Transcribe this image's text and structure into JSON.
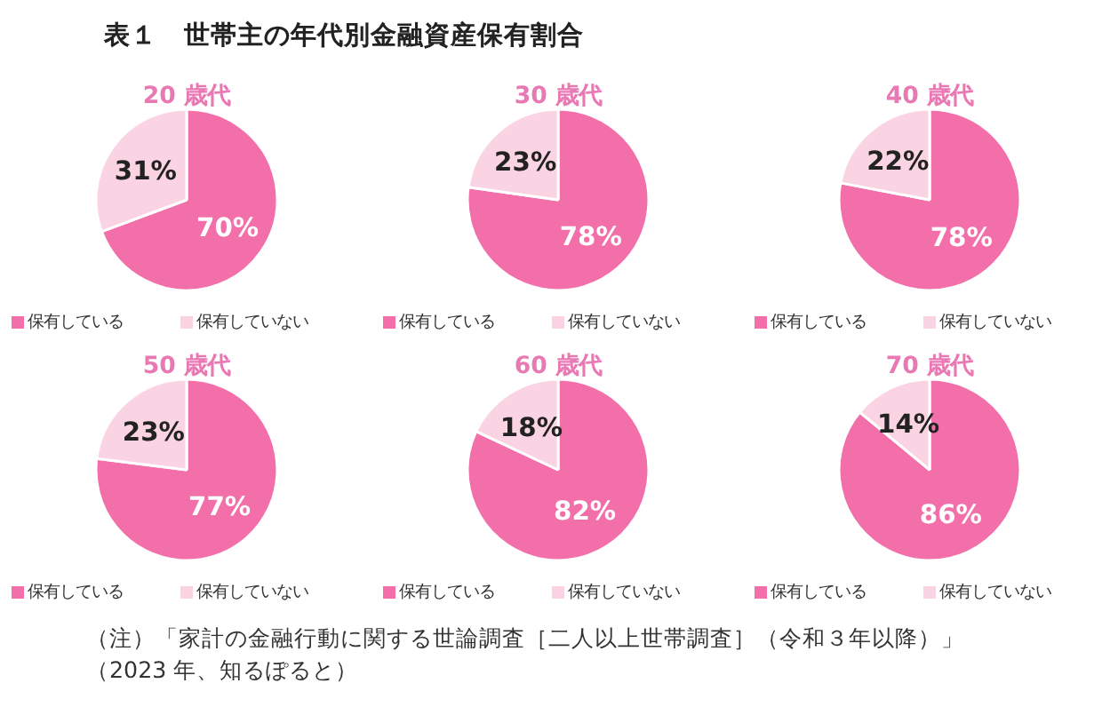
{
  "chart_data": [
    {
      "type": "other",
      "title": "表１　世帯主の年代別金融資産保有割合",
      "annotations": [
        "（注）「家計の金融行動に関する世論調査［二人以上世帯調査］（令和３年以降）」",
        "（2023 年、知るぽると）"
      ]
    },
    {
      "type": "pie",
      "title": "20 歳代",
      "categories": [
        "保有している",
        "保有していない"
      ],
      "values": [
        70,
        31
      ],
      "value_labels": [
        "70%",
        "31%"
      ],
      "colors": [
        "#f26fa9",
        "#fbd4e3"
      ],
      "legend": "bottom"
    },
    {
      "type": "pie",
      "title": "30 歳代",
      "categories": [
        "保有している",
        "保有していない"
      ],
      "values": [
        78,
        23
      ],
      "value_labels": [
        "78%",
        "23%"
      ],
      "colors": [
        "#f26fa9",
        "#fbd4e3"
      ],
      "legend": "bottom"
    },
    {
      "type": "pie",
      "title": "40 歳代",
      "categories": [
        "保有している",
        "保有していない"
      ],
      "values": [
        78,
        22
      ],
      "value_labels": [
        "78%",
        "22%"
      ],
      "colors": [
        "#f26fa9",
        "#fbd4e3"
      ],
      "legend": "bottom"
    },
    {
      "type": "pie",
      "title": "50 歳代",
      "categories": [
        "保有している",
        "保有していない"
      ],
      "values": [
        77,
        23
      ],
      "value_labels": [
        "77%",
        "23%"
      ],
      "colors": [
        "#f26fa9",
        "#fbd4e3"
      ],
      "legend": "bottom"
    },
    {
      "type": "pie",
      "title": "60 歳代",
      "categories": [
        "保有している",
        "保有していない"
      ],
      "values": [
        82,
        18
      ],
      "value_labels": [
        "82%",
        "18%"
      ],
      "colors": [
        "#f26fa9",
        "#fbd4e3"
      ],
      "legend": "bottom"
    },
    {
      "type": "pie",
      "title": "70 歳代",
      "categories": [
        "保有している",
        "保有していない"
      ],
      "values": [
        86,
        14
      ],
      "value_labels": [
        "86%",
        "14%"
      ],
      "colors": [
        "#f26fa9",
        "#fbd4e3"
      ],
      "legend": "bottom"
    }
  ]
}
